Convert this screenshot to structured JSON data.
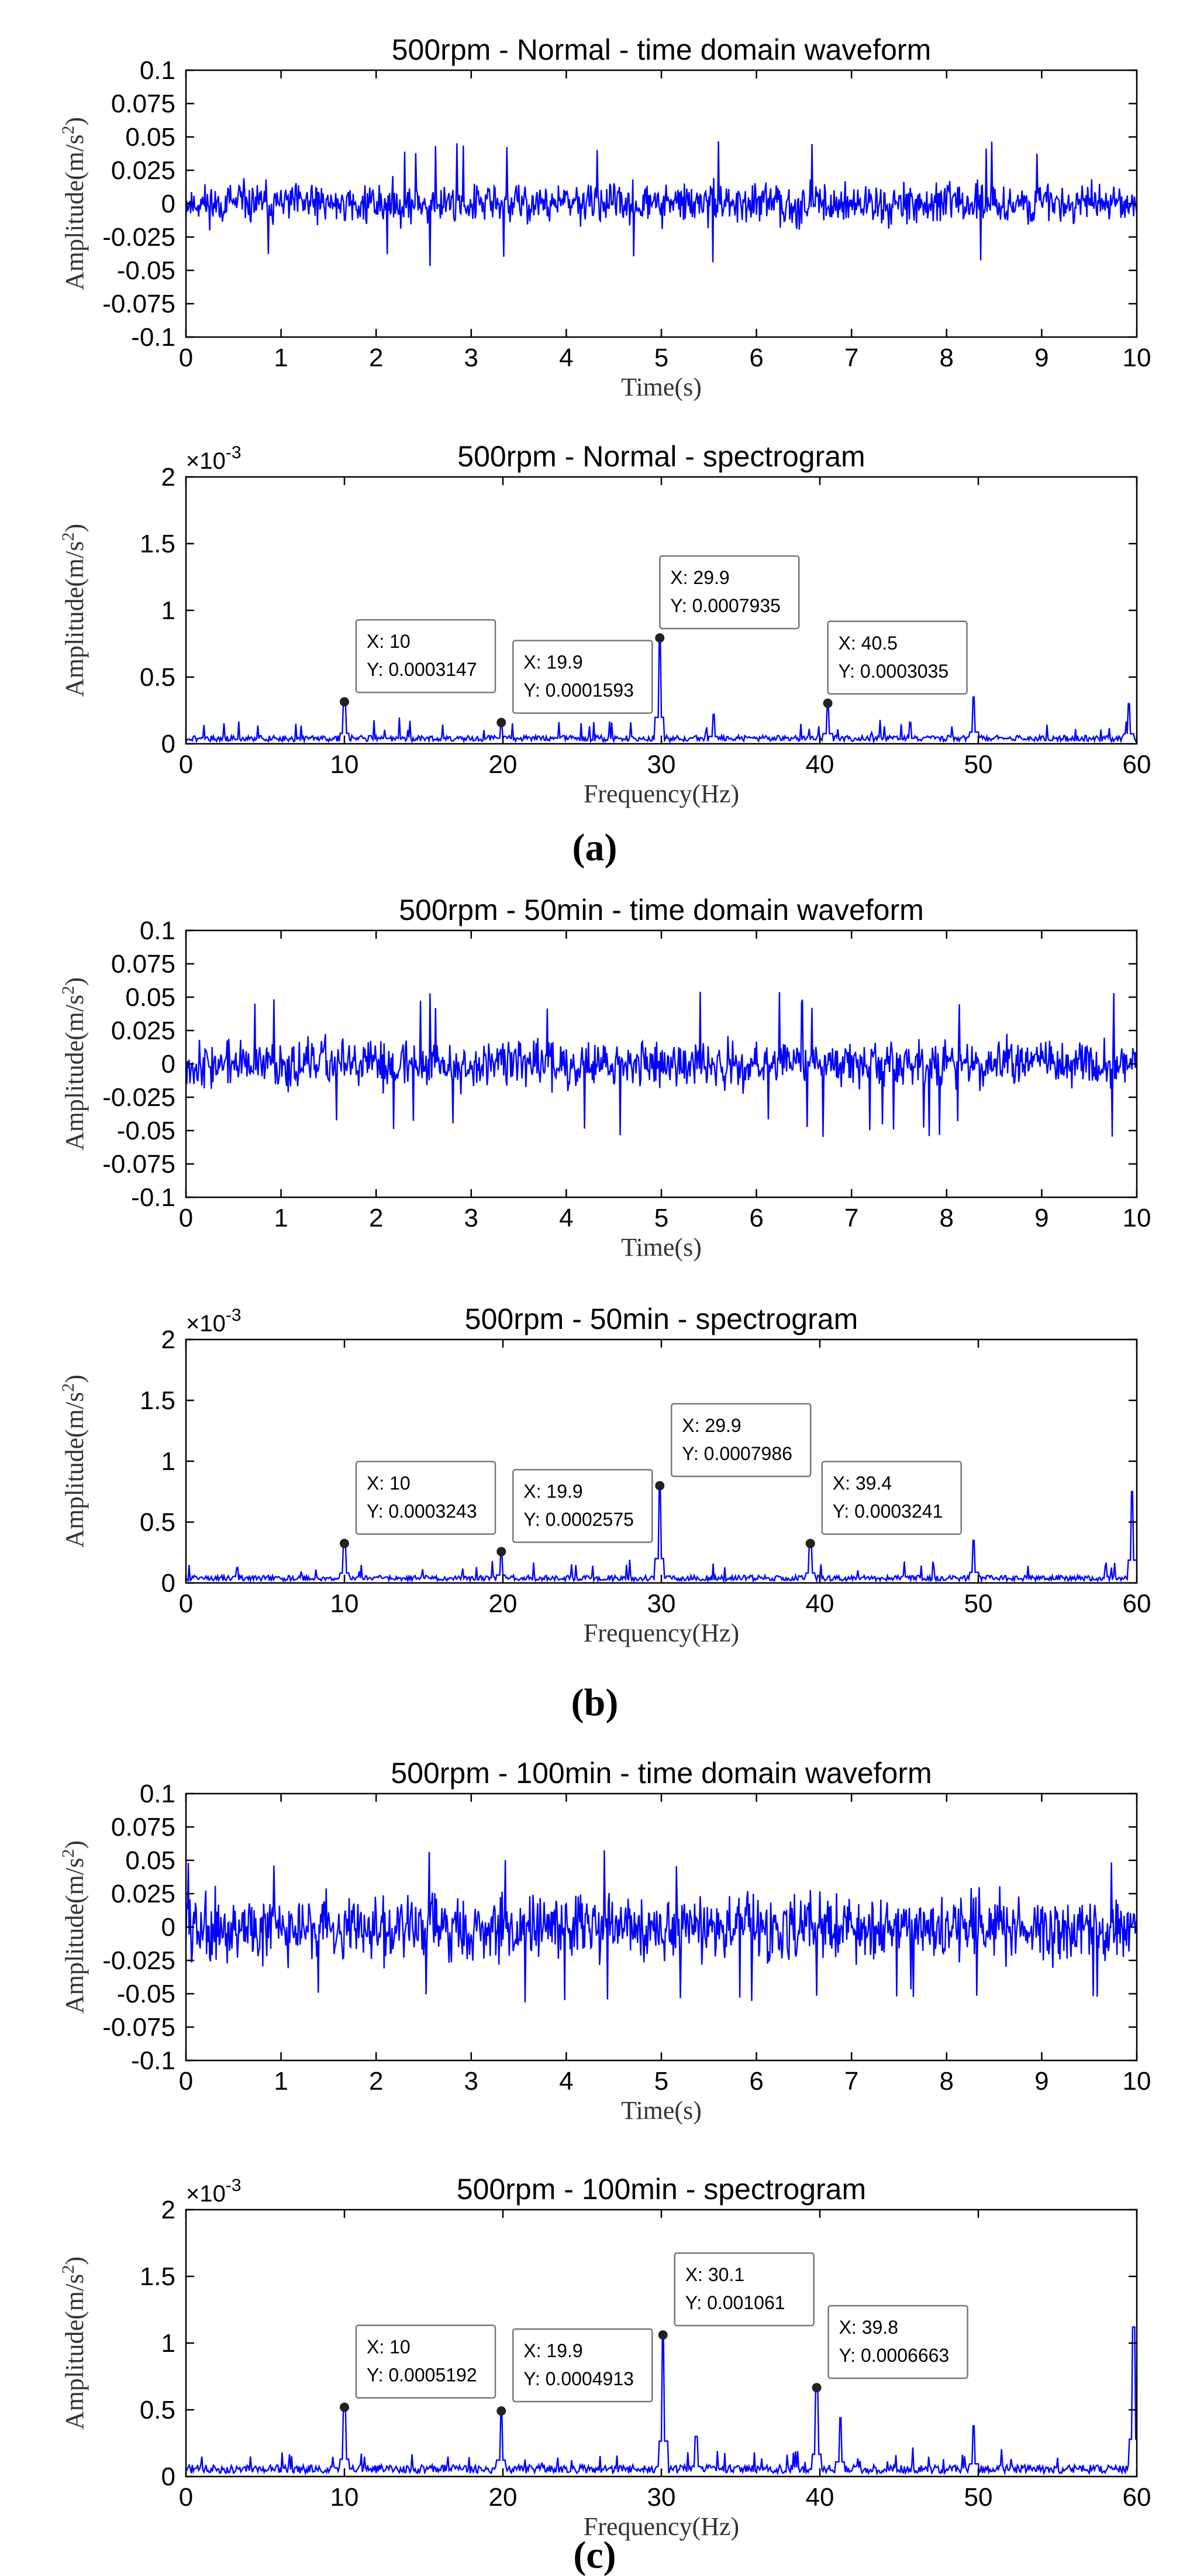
{
  "colors": {
    "signal": "#0000ff",
    "axes": "#000000"
  },
  "panel_labels": [
    "(a)",
    "(b)",
    "(c)"
  ],
  "chart_data": [
    {
      "type": "line",
      "panel": "(a)",
      "title": "500rpm  -  Normal  -  time domain waveform",
      "xlabel": "Time(s)",
      "ylabel": "Amplitude(m/s^2)",
      "xlim": [
        0,
        10
      ],
      "ylim": [
        -0.1,
        0.1
      ],
      "xticks": [
        0,
        1,
        2,
        3,
        4,
        5,
        6,
        7,
        8,
        9,
        10
      ],
      "xtick_labels": [
        "0",
        "1",
        "2",
        "3",
        "4",
        "5",
        "6",
        "7",
        "8",
        "9",
        "10"
      ],
      "yticks": [
        0.1,
        0.075,
        0.05,
        0.025,
        0,
        -0.025,
        -0.05,
        -0.075,
        -0.1
      ],
      "ytick_labels": [
        "0.1",
        "0.075",
        "0.05",
        "0.025",
        "0",
        "-0.025",
        "-0.05",
        "-0.075",
        "-0.1"
      ],
      "series": [
        {
          "name": "vibration",
          "signal": "noise",
          "noise_amplitude": 0.022,
          "peak_amplitude": 0.047,
          "seed": 11
        }
      ]
    },
    {
      "type": "line",
      "panel": "(a)",
      "title": "500rpm  -  Normal  -  spectrogram",
      "xlabel": "Frequency(Hz)",
      "ylabel": "Amplitude(m/s^2)",
      "xlim": [
        0,
        60
      ],
      "ylim": [
        0,
        2
      ],
      "y_exponent": "-3",
      "xticks": [
        0,
        10,
        20,
        30,
        40,
        50,
        60
      ],
      "xtick_labels": [
        "0",
        "10",
        "20",
        "30",
        "40",
        "50",
        "60"
      ],
      "yticks": [
        2,
        1.5,
        1,
        0.5,
        0
      ],
      "ytick_labels": [
        "2",
        "1.5",
        "1",
        "0.5",
        "0"
      ],
      "series": [
        {
          "name": "spectrum",
          "signal": "spectrum",
          "base": 0.05,
          "seed": 21,
          "peaks": [
            [
              10,
              0.3147
            ],
            [
              19.9,
              0.1593
            ],
            [
              29.9,
              0.7935
            ],
            [
              33.3,
              0.22
            ],
            [
              40.5,
              0.3035
            ],
            [
              45.7,
              0.16
            ],
            [
              49.7,
              0.35
            ],
            [
              59.5,
              0.3
            ]
          ]
        }
      ],
      "datatips": [
        {
          "x": 10,
          "y": 0.3147,
          "label_x": "X: 10",
          "label_y": "Y: 0.0003147"
        },
        {
          "x": 19.9,
          "y": 0.1593,
          "label_x": "X: 19.9",
          "label_y": "Y: 0.0001593"
        },
        {
          "x": 29.9,
          "y": 0.7935,
          "label_x": "X: 29.9",
          "label_y": "Y: 0.0007935"
        },
        {
          "x": 40.5,
          "y": 0.3035,
          "label_x": "X: 40.5",
          "label_y": "Y: 0.0003035"
        }
      ]
    },
    {
      "type": "line",
      "panel": "(b)",
      "title": "500rpm  -  50min  -  time domain waveform",
      "xlabel": "Time(s)",
      "ylabel": "Amplitude(m/s^2)",
      "xlim": [
        0,
        10
      ],
      "ylim": [
        -0.1,
        0.1
      ],
      "xticks": [
        0,
        1,
        2,
        3,
        4,
        5,
        6,
        7,
        8,
        9,
        10
      ],
      "xtick_labels": [
        "0",
        "1",
        "2",
        "3",
        "4",
        "5",
        "6",
        "7",
        "8",
        "9",
        "10"
      ],
      "yticks": [
        0.1,
        0.075,
        0.05,
        0.025,
        0,
        -0.025,
        -0.05,
        -0.075,
        -0.1
      ],
      "ytick_labels": [
        "0.1",
        "0.075",
        "0.05",
        "0.025",
        "0",
        "-0.025",
        "-0.05",
        "-0.075",
        "-0.1"
      ],
      "series": [
        {
          "name": "vibration",
          "signal": "noise",
          "noise_amplitude": 0.026,
          "peak_amplitude": 0.055,
          "seed": 37
        }
      ]
    },
    {
      "type": "line",
      "panel": "(b)",
      "title": "500rpm  -  50min  -  spectrogram",
      "xlabel": "Frequency(Hz)",
      "ylabel": "Amplitude(m/s^2)",
      "xlim": [
        0,
        60
      ],
      "ylim": [
        0,
        2
      ],
      "y_exponent": "-3",
      "xticks": [
        0,
        10,
        20,
        30,
        40,
        50,
        60
      ],
      "xtick_labels": [
        "0",
        "10",
        "20",
        "30",
        "40",
        "50",
        "60"
      ],
      "yticks": [
        2,
        1.5,
        1,
        0.5,
        0
      ],
      "ytick_labels": [
        "2",
        "1.5",
        "1",
        "0.5",
        "0"
      ],
      "series": [
        {
          "name": "spectrum",
          "signal": "spectrum",
          "base": 0.05,
          "seed": 43,
          "peaks": [
            [
              10,
              0.3243
            ],
            [
              19.9,
              0.2575
            ],
            [
              29.9,
              0.7986
            ],
            [
              39.4,
              0.3241
            ],
            [
              49.7,
              0.35
            ],
            [
              59.7,
              0.75
            ]
          ]
        }
      ],
      "datatips": [
        {
          "x": 10,
          "y": 0.3243,
          "label_x": "X: 10",
          "label_y": "Y: 0.0003243"
        },
        {
          "x": 19.9,
          "y": 0.2575,
          "label_x": "X: 19.9",
          "label_y": "Y: 0.0002575"
        },
        {
          "x": 29.9,
          "y": 0.7986,
          "label_x": "X: 29.9",
          "label_y": "Y: 0.0007986"
        },
        {
          "x": 39.4,
          "y": 0.3241,
          "label_x": "X: 39.4",
          "label_y": "Y: 0.0003241"
        }
      ]
    },
    {
      "type": "line",
      "panel": "(c)",
      "title": "500rpm  -  100min  -  time domain waveform",
      "xlabel": "Time(s)",
      "ylabel": "Amplitude(m/s^2)",
      "xlim": [
        0,
        10
      ],
      "ylim": [
        -0.1,
        0.1
      ],
      "xticks": [
        0,
        1,
        2,
        3,
        4,
        5,
        6,
        7,
        8,
        9,
        10
      ],
      "xtick_labels": [
        "0",
        "1",
        "2",
        "3",
        "4",
        "5",
        "6",
        "7",
        "8",
        "9",
        "10"
      ],
      "yticks": [
        0.1,
        0.075,
        0.05,
        0.025,
        0,
        -0.025,
        -0.05,
        -0.075,
        -0.1
      ],
      "ytick_labels": [
        "0.1",
        "0.075",
        "0.05",
        "0.025",
        "0",
        "-0.025",
        "-0.05",
        "-0.075",
        "-0.1"
      ],
      "series": [
        {
          "name": "vibration",
          "signal": "noise",
          "noise_amplitude": 0.036,
          "peak_amplitude": 0.06,
          "seed": 59
        }
      ]
    },
    {
      "type": "line",
      "panel": "(c)",
      "title": "500rpm  -  100min  -  spectrogram",
      "xlabel": "Frequency(Hz)",
      "ylabel": "Amplitude(m/s^2)",
      "xlim": [
        0,
        60
      ],
      "ylim": [
        0,
        2
      ],
      "y_exponent": "-3",
      "xticks": [
        0,
        10,
        20,
        30,
        40,
        50,
        60
      ],
      "xtick_labels": [
        "0",
        "10",
        "20",
        "30",
        "40",
        "50",
        "60"
      ],
      "yticks": [
        2,
        1.5,
        1,
        0.5,
        0
      ],
      "ytick_labels": [
        "2",
        "1.5",
        "1",
        "0.5",
        "0"
      ],
      "series": [
        {
          "name": "spectrum",
          "signal": "spectrum",
          "base": 0.07,
          "seed": 71,
          "peaks": [
            [
              10,
              0.5192
            ],
            [
              19.9,
              0.4913
            ],
            [
              30.1,
              1.061
            ],
            [
              32.2,
              0.3
            ],
            [
              39.8,
              0.6663
            ],
            [
              41.3,
              0.44
            ],
            [
              49.7,
              0.38
            ],
            [
              59.8,
              1.12
            ]
          ]
        }
      ],
      "datatips": [
        {
          "x": 10,
          "y": 0.5192,
          "label_x": "X: 10",
          "label_y": "Y: 0.0005192"
        },
        {
          "x": 19.9,
          "y": 0.4913,
          "label_x": "X: 19.9",
          "label_y": "Y: 0.0004913"
        },
        {
          "x": 30.1,
          "y": 1.061,
          "label_x": "X: 30.1",
          "label_y": "Y: 0.001061"
        },
        {
          "x": 39.8,
          "y": 0.6663,
          "label_x": "X: 39.8",
          "label_y": "Y: 0.0006663"
        }
      ]
    }
  ]
}
